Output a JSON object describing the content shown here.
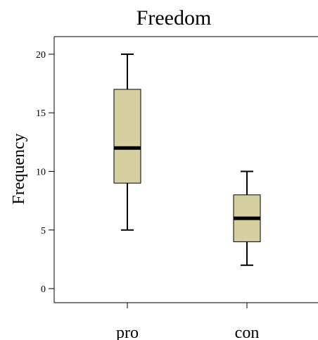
{
  "chart_data": {
    "type": "box",
    "title": "Freedom",
    "xlabel": "",
    "ylabel": "Frequency",
    "ylim": [
      -1.2,
      21.5
    ],
    "yticks": [
      0,
      5,
      10,
      15,
      20
    ],
    "grid": false,
    "legend": "none",
    "categories": [
      "pro",
      "con"
    ],
    "boxes": [
      {
        "category": "pro",
        "min": 5,
        "q1": 9,
        "median": 12,
        "q3": 17,
        "max": 20
      },
      {
        "category": "con",
        "min": 2,
        "q1": 4,
        "median": 6,
        "q3": 8,
        "max": 10
      }
    ],
    "colors": {
      "box_fill": "#D6CF9F",
      "box_stroke": "#000000",
      "median": "#000000",
      "axis": "#000000"
    }
  }
}
